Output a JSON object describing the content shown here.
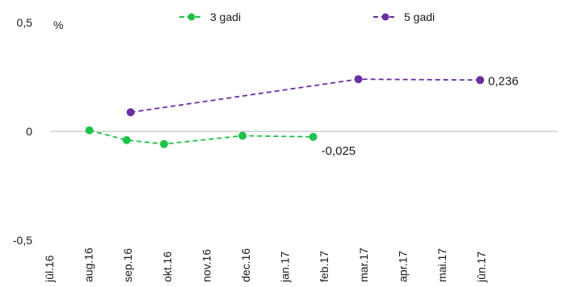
{
  "chart_data": {
    "type": "line",
    "categories": [
      "jūl.16",
      "aug.16",
      "sep.16",
      "okt.16",
      "nov.16",
      "dec.16",
      "jan.17",
      "feb.17",
      "mar.17",
      "apr.17",
      "mai.17",
      "jūn.17"
    ],
    "x": [
      0,
      1,
      2,
      3,
      4,
      5,
      6,
      7,
      8,
      9,
      10,
      11
    ],
    "ylim": [
      -0.5,
      0.5
    ],
    "yticks": [
      {
        "value": -0.5,
        "label": "-0,5"
      },
      {
        "value": 0,
        "label": "0"
      },
      {
        "value": 0.5,
        "label": "0,5"
      }
    ],
    "unit_label": "%",
    "legend_position": "top",
    "series": [
      {
        "name": "3 gadi",
        "color": "#1ec24a",
        "points": [
          {
            "x": 1,
            "y": 0.005
          },
          {
            "x": 1.95,
            "y": -0.04
          },
          {
            "x": 2.9,
            "y": -0.058
          },
          {
            "x": 4.9,
            "y": -0.02
          },
          {
            "x": 6.7,
            "y": -0.025
          }
        ],
        "end_label": "-0,025"
      },
      {
        "name": "5 gadi",
        "color": "#6a2fa0",
        "points": [
          {
            "x": 2.05,
            "y": 0.088
          },
          {
            "x": 7.85,
            "y": 0.24
          },
          {
            "x": 10.95,
            "y": 0.236
          }
        ],
        "end_label": "0,236"
      }
    ]
  }
}
